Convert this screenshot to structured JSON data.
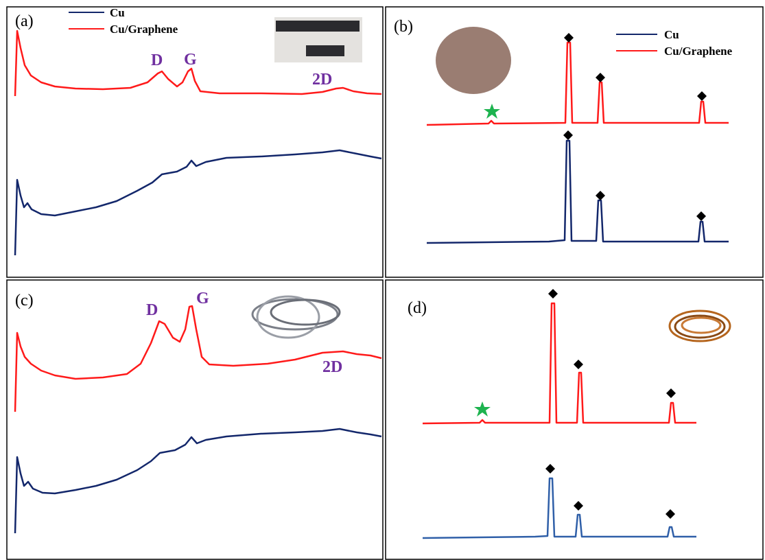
{
  "panels": [
    {
      "label": "(a)",
      "legend": [
        "Cu",
        "Cu/Graphene"
      ],
      "peaks": [
        "D",
        "G",
        "2D"
      ]
    },
    {
      "label": "(b)",
      "legend": [
        "Cu",
        "Cu/Graphene"
      ]
    },
    {
      "label": "(c)",
      "peaks": [
        "D",
        "G",
        "2D"
      ]
    },
    {
      "label": "(d)"
    }
  ]
}
